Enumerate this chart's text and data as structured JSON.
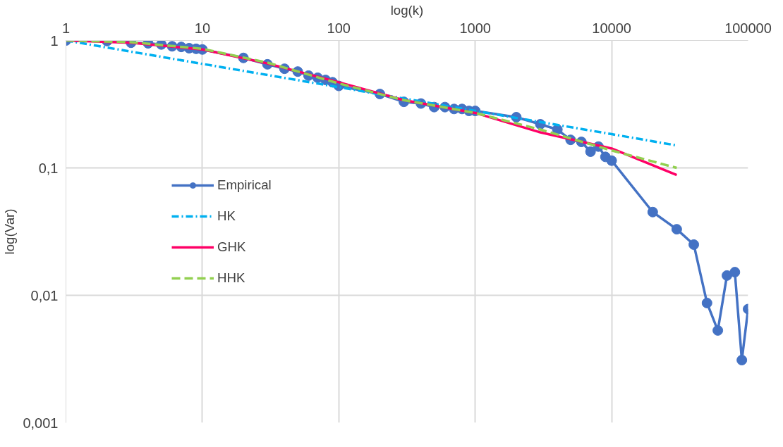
{
  "chart_data": {
    "type": "line",
    "xlabel": "log(k)",
    "ylabel": "log(Var)",
    "log": "xy",
    "grid": true,
    "legend": "left",
    "xlim": [
      1,
      100000
    ],
    "ylim": [
      0.001,
      1
    ],
    "xticks": [
      1,
      10,
      100,
      1000,
      10000,
      100000
    ],
    "yticks": [
      {
        "value": 0.001,
        "label": "0,001"
      },
      {
        "value": 0.01,
        "label": "0,01"
      },
      {
        "value": 0.1,
        "label": "0,1"
      },
      {
        "value": 1,
        "label": "1"
      }
    ],
    "series": [
      {
        "name": "Empirical",
        "color": "#4472c4",
        "marker": "circle",
        "line_style": "solid",
        "x": [
          1,
          2,
          3,
          4,
          5,
          6,
          7,
          8,
          9,
          10,
          20,
          30,
          40,
          50,
          60,
          70,
          80,
          90,
          100,
          200,
          300,
          400,
          500,
          600,
          700,
          800,
          900,
          1000,
          2000,
          3000,
          4000,
          5000,
          6000,
          7000,
          8000,
          9000,
          10000,
          20000,
          30000,
          40000,
          50000,
          60000,
          70000,
          80000,
          90000,
          100000
        ],
        "values": [
          1,
          0.99,
          0.96,
          0.95,
          0.93,
          0.9,
          0.89,
          0.87,
          0.86,
          0.85,
          0.73,
          0.65,
          0.6,
          0.57,
          0.53,
          0.51,
          0.49,
          0.47,
          0.44,
          0.38,
          0.33,
          0.32,
          0.3,
          0.3,
          0.29,
          0.29,
          0.28,
          0.28,
          0.25,
          0.22,
          0.2,
          0.166,
          0.16,
          0.134,
          0.147,
          0.122,
          0.114,
          0.045,
          0.033,
          0.025,
          0.0087,
          0.0053,
          0.0143,
          0.0152,
          0.0031,
          0.0078
        ]
      },
      {
        "name": "HK",
        "color": "#00b0f0",
        "marker": "none",
        "line_style": "dashdot",
        "x": [
          1,
          10,
          100,
          1000,
          10000,
          30000
        ],
        "values": [
          1,
          0.655,
          0.43,
          0.28,
          0.184,
          0.15
        ]
      },
      {
        "name": "GHK",
        "color": "#ff0066",
        "marker": "none",
        "line_style": "solid",
        "x": [
          1,
          3,
          10,
          30,
          100,
          300,
          1000,
          3000,
          10000,
          30000
        ],
        "values": [
          1,
          0.96,
          0.85,
          0.66,
          0.47,
          0.34,
          0.27,
          0.19,
          0.142,
          0.088
        ]
      },
      {
        "name": "HHK",
        "color": "#92d050",
        "marker": "none",
        "line_style": "dashed",
        "x": [
          1,
          3,
          10,
          30,
          100,
          300,
          1000,
          3000,
          10000,
          30000
        ],
        "values": [
          1,
          0.97,
          0.86,
          0.67,
          0.46,
          0.34,
          0.27,
          0.2,
          0.137,
          0.1
        ]
      }
    ]
  }
}
